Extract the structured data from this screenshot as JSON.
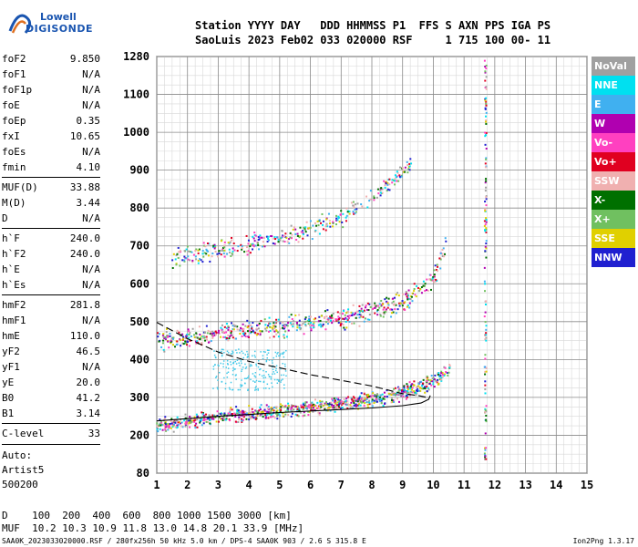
{
  "logo": {
    "line1": "Lowell",
    "line2": "DIGISONDE"
  },
  "header": {
    "line1": "Station YYYY DAY   DDD HHMMSS P1  FFS S AXN PPS IGA PS",
    "line2": "SaoLuis 2023 Feb02 033 020000 RSF     1 715 100 00- 11"
  },
  "params": {
    "g1": [
      {
        "k": "foF2",
        "v": "9.850"
      },
      {
        "k": "foF1",
        "v": "N/A"
      },
      {
        "k": "foF1p",
        "v": "N/A"
      },
      {
        "k": "foE",
        "v": "N/A"
      },
      {
        "k": "foEp",
        "v": "0.35"
      },
      {
        "k": "fxI",
        "v": "10.65"
      },
      {
        "k": "foEs",
        "v": "N/A"
      },
      {
        "k": "fmin",
        "v": "4.10"
      }
    ],
    "g2": [
      {
        "k": "MUF(D)",
        "v": "33.88"
      },
      {
        "k": "M(D)",
        "v": "3.44"
      },
      {
        "k": "D",
        "v": "N/A"
      }
    ],
    "g3": [
      {
        "k": "h`F",
        "v": "240.0"
      },
      {
        "k": "h`F2",
        "v": "240.0"
      },
      {
        "k": "h`E",
        "v": "N/A"
      },
      {
        "k": "h`Es",
        "v": "N/A"
      }
    ],
    "g4": [
      {
        "k": "hmF2",
        "v": "281.8"
      },
      {
        "k": "hmF1",
        "v": "N/A"
      },
      {
        "k": "hmE",
        "v": "110.0"
      },
      {
        "k": "yF2",
        "v": "46.5"
      },
      {
        "k": "yF1",
        "v": "N/A"
      },
      {
        "k": "yE",
        "v": "20.0"
      },
      {
        "k": "B0",
        "v": "41.2"
      },
      {
        "k": "B1",
        "v": "3.14"
      }
    ],
    "clevel": {
      "k": "C-level",
      "v": "33"
    },
    "auto": [
      "Auto:",
      "Artist5",
      "500200"
    ]
  },
  "legend": [
    {
      "label": "NoVal",
      "color": "#a0a0a0"
    },
    {
      "label": "NNE",
      "color": "#00e0f0"
    },
    {
      "label": "E",
      "color": "#40b0f0"
    },
    {
      "label": "W",
      "color": "#b000b0"
    },
    {
      "label": "Vo-",
      "color": "#ff40c0"
    },
    {
      "label": "Vo+",
      "color": "#e00020"
    },
    {
      "label": "SSW",
      "color": "#f0b0b0"
    },
    {
      "label": "X-",
      "color": "#007000"
    },
    {
      "label": "X+",
      "color": "#70c060"
    },
    {
      "label": "SSE",
      "color": "#e0d000"
    },
    {
      "label": "NNW",
      "color": "#2020d0"
    }
  ],
  "muf_table": {
    "line1": "D    100  200  400  600  800 1000 1500 3000 [km]",
    "line2": "MUF  10.2 10.3 10.9 11.8 13.0 14.8 20.1 33.9 [MHz]"
  },
  "footer": {
    "left": "SAA0K_2023033020000.RSF / 280fx256h 50 kHz 5.0 km / DPS-4 SAA0K 903 / 2.6 S 315.8 E",
    "right": "Ion2Png 1.3.17"
  },
  "chart_data": {
    "type": "scatter",
    "title": "",
    "xlabel": "",
    "ylabel": "",
    "xlim": [
      1,
      15
    ],
    "ylim": [
      80,
      1280
    ],
    "x_ticks": [
      1,
      2,
      3,
      4,
      5,
      6,
      7,
      8,
      9,
      10,
      11,
      12,
      13,
      14,
      15
    ],
    "y_ticks": [
      80,
      200,
      300,
      400,
      500,
      600,
      700,
      800,
      900,
      1000,
      1100,
      1280
    ],
    "grid": true,
    "legend_position": "right",
    "traces": [
      {
        "name": "F2 trace (1-hop)",
        "color_hint": "mixed",
        "points": [
          [
            1.0,
            225
          ],
          [
            1.5,
            232
          ],
          [
            2.0,
            240
          ],
          [
            2.5,
            245
          ],
          [
            3.0,
            250
          ],
          [
            3.5,
            255
          ],
          [
            4.0,
            258
          ],
          [
            4.5,
            262
          ],
          [
            5.0,
            266
          ],
          [
            5.5,
            270
          ],
          [
            6.0,
            275
          ],
          [
            6.5,
            280
          ],
          [
            7.0,
            285
          ],
          [
            7.5,
            292
          ],
          [
            8.0,
            298
          ],
          [
            8.5,
            305
          ],
          [
            9.0,
            315
          ],
          [
            9.5,
            330
          ],
          [
            10.0,
            345
          ],
          [
            10.3,
            360
          ],
          [
            10.5,
            380
          ]
        ]
      },
      {
        "name": "F2 trace (2-hop)",
        "color_hint": "mixed",
        "points": [
          [
            1.0,
            450
          ],
          [
            1.5,
            455
          ],
          [
            2.0,
            460
          ],
          [
            3.0,
            470
          ],
          [
            4.0,
            480
          ],
          [
            5.0,
            490
          ],
          [
            6.0,
            500
          ],
          [
            7.0,
            512
          ],
          [
            8.0,
            530
          ],
          [
            9.0,
            555
          ],
          [
            9.5,
            580
          ],
          [
            10.0,
            620
          ],
          [
            10.3,
            680
          ],
          [
            10.4,
            720
          ]
        ]
      },
      {
        "name": "F2 trace (3-hop)",
        "color_hint": "mixed",
        "points": [
          [
            1.5,
            665
          ],
          [
            2.0,
            680
          ],
          [
            3.0,
            690
          ],
          [
            4.0,
            705
          ],
          [
            5.0,
            725
          ],
          [
            6.0,
            745
          ],
          [
            7.0,
            780
          ],
          [
            8.0,
            830
          ],
          [
            9.0,
            895
          ],
          [
            9.3,
            920
          ]
        ]
      },
      {
        "name": "Es/vertical",
        "color_hint": "mixed",
        "points": [
          [
            11.7,
            150
          ],
          [
            11.7,
            250
          ],
          [
            11.7,
            400
          ],
          [
            11.7,
            600
          ],
          [
            11.7,
            900
          ],
          [
            11.7,
            1260
          ]
        ]
      }
    ],
    "profile_curve": [
      [
        1.0,
        498
      ],
      [
        2.0,
        455
      ],
      [
        3.0,
        420
      ],
      [
        4.0,
        395
      ],
      [
        5.0,
        378
      ],
      [
        6.0,
        360
      ],
      [
        7.0,
        345
      ],
      [
        8.0,
        330
      ],
      [
        9.0,
        310
      ],
      [
        9.5,
        305
      ],
      [
        9.8,
        300
      ]
    ],
    "model_trace": [
      [
        1.0,
        238
      ],
      [
        3.0,
        250
      ],
      [
        5.0,
        260
      ],
      [
        7.0,
        268
      ],
      [
        8.0,
        272
      ],
      [
        9.0,
        278
      ],
      [
        9.6,
        285
      ],
      [
        9.85,
        295
      ],
      [
        9.9,
        305
      ]
    ]
  }
}
